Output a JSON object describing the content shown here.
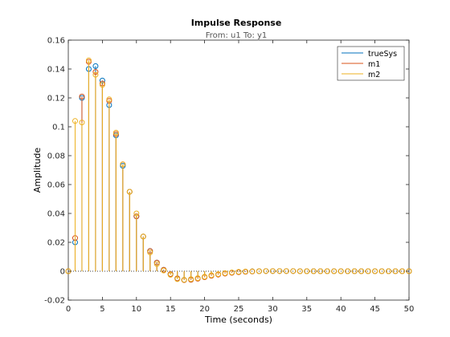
{
  "chart_data": {
    "type": "stem",
    "title": "Impulse Response",
    "subtitle": "From: u1  To: y1",
    "xlabel": "Time (seconds)",
    "ylabel": "Amplitude",
    "xlim": [
      0,
      50
    ],
    "ylim": [
      -0.02,
      0.16
    ],
    "xticks": [
      "0",
      "5",
      "10",
      "15",
      "20",
      "25",
      "30",
      "35",
      "40",
      "45",
      "50"
    ],
    "yticks": [
      "-0.02",
      "0",
      "0.02",
      "0.04",
      "0.06",
      "0.08",
      "0.1",
      "0.12",
      "0.14",
      "0.16"
    ],
    "legend": {
      "position": "top-right",
      "entries": [
        "trueSys",
        "m1",
        "m2"
      ]
    },
    "series": [
      {
        "name": "trueSys",
        "color": "#0072bd",
        "x": [
          0,
          1,
          2,
          3,
          4,
          5,
          6,
          7,
          8,
          9,
          10,
          11,
          12,
          13,
          14,
          15,
          16,
          17,
          18,
          19,
          20,
          21,
          22,
          23,
          24,
          25,
          26,
          27,
          28,
          29,
          30,
          31,
          32,
          33,
          34,
          35,
          36,
          37,
          38,
          39,
          40,
          41,
          42,
          43,
          44,
          45,
          46,
          47,
          48,
          49,
          50
        ],
        "y": [
          0,
          0.02,
          0.12,
          0.14,
          0.142,
          0.132,
          0.115,
          0.094,
          0.073,
          0.055,
          0.038,
          0.024,
          0.014,
          0.006,
          0.001,
          -0.002,
          -0.005,
          -0.006,
          -0.0058,
          -0.005,
          -0.004,
          -0.003,
          -0.0022,
          -0.0015,
          -0.001,
          -0.0006,
          -0.0003,
          -0.0001,
          0,
          0.0001,
          0.0001,
          0.0001,
          0.0001,
          0.0001,
          0,
          0,
          0,
          0,
          0,
          0,
          0,
          0,
          0,
          0,
          0,
          0,
          0,
          0,
          0,
          0,
          0
        ]
      },
      {
        "name": "m1",
        "color": "#d95319",
        "x": [
          0,
          1,
          2,
          3,
          4,
          5,
          6,
          7,
          8,
          9,
          10,
          11,
          12,
          13,
          14,
          15,
          16,
          17,
          18,
          19,
          20,
          21,
          22,
          23,
          24,
          25,
          26,
          27,
          28,
          29,
          30,
          31,
          32,
          33,
          34,
          35,
          36,
          37,
          38,
          39,
          40,
          41,
          42,
          43,
          44,
          45,
          46,
          47,
          48,
          49,
          50
        ],
        "y": [
          0,
          0.023,
          0.121,
          0.145,
          0.138,
          0.13,
          0.118,
          0.095,
          0.074,
          0.055,
          0.038,
          0.024,
          0.014,
          0.006,
          0.001,
          -0.002,
          -0.005,
          -0.0062,
          -0.006,
          -0.0052,
          -0.0042,
          -0.0032,
          -0.0024,
          -0.0017,
          -0.0011,
          -0.0007,
          -0.0004,
          -0.0002,
          0,
          0.0001,
          0.0001,
          0.0001,
          0.0001,
          0.0001,
          0,
          0,
          0,
          0,
          0,
          0,
          0,
          0,
          0,
          0,
          0,
          0,
          0,
          0,
          0,
          0,
          0
        ]
      },
      {
        "name": "m2",
        "color": "#edb120",
        "x": [
          0,
          1,
          2,
          3,
          4,
          5,
          6,
          7,
          8,
          9,
          10,
          11,
          12,
          13,
          14,
          15,
          16,
          17,
          18,
          19,
          20,
          21,
          22,
          23,
          24,
          25,
          26,
          27,
          28,
          29,
          30,
          31,
          32,
          33,
          34,
          35,
          36,
          37,
          38,
          39,
          40,
          41,
          42,
          43,
          44,
          45,
          46,
          47,
          48,
          49,
          50
        ],
        "y": [
          0,
          0.104,
          0.103,
          0.146,
          0.136,
          0.129,
          0.119,
          0.096,
          0.074,
          0.055,
          0.04,
          0.024,
          0.013,
          0.005,
          0.0005,
          -0.0025,
          -0.0055,
          -0.006,
          -0.0055,
          -0.0048,
          -0.0038,
          -0.0028,
          -0.002,
          -0.0013,
          -0.0008,
          -0.0004,
          -0.0002,
          -0.0001,
          0,
          0.0001,
          0.0001,
          0.0001,
          0.0001,
          0.0001,
          0,
          0,
          0,
          0,
          0,
          0,
          0,
          0,
          0,
          0,
          0,
          0,
          0,
          0,
          0,
          0,
          0
        ]
      }
    ]
  }
}
